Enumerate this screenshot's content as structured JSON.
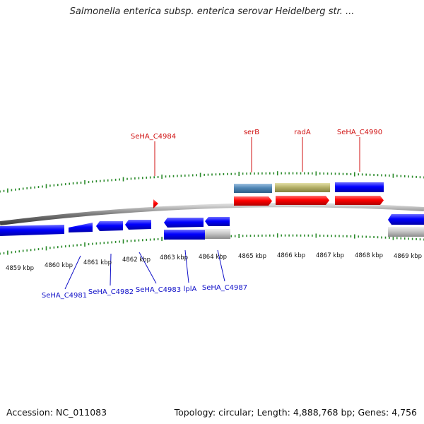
{
  "title": "Salmonella enterica subsp. enterica serovar Heidelberg str. ...",
  "footer": {
    "accession": "Accession: NC_011083",
    "summary": "Topology: circular; Length: 4,888,768 bp; Genes: 4,756"
  },
  "colors": {
    "tick": "#2a8a2a",
    "backbone": "#8a8a8a",
    "forward_label": "#d01010",
    "reverse_label": "#1010c8",
    "red_gene": "#ff0000",
    "blue_gene": "#0000ff",
    "steel_gene": "#4f86b5",
    "olive_gene": "#b5b16a",
    "grey_gene": "#c8c8c8"
  },
  "scale_labels": [
    "4859 kbp",
    "4860 kbp",
    "4861 kbp",
    "4862 kbp",
    "4863 kbp",
    "4864 kbp",
    "4865 kbp",
    "4866 kbp",
    "4867 kbp",
    "4868 kbp",
    "4869 kbp"
  ],
  "forward_genes": [
    "SeHA_C4984",
    "serB",
    "radA",
    "SeHA_C4990"
  ],
  "reverse_genes": [
    "SeHA_C4981",
    "SeHA_C4982",
    "SeHA_C4983",
    "lplA",
    "SeHA_C4987"
  ]
}
